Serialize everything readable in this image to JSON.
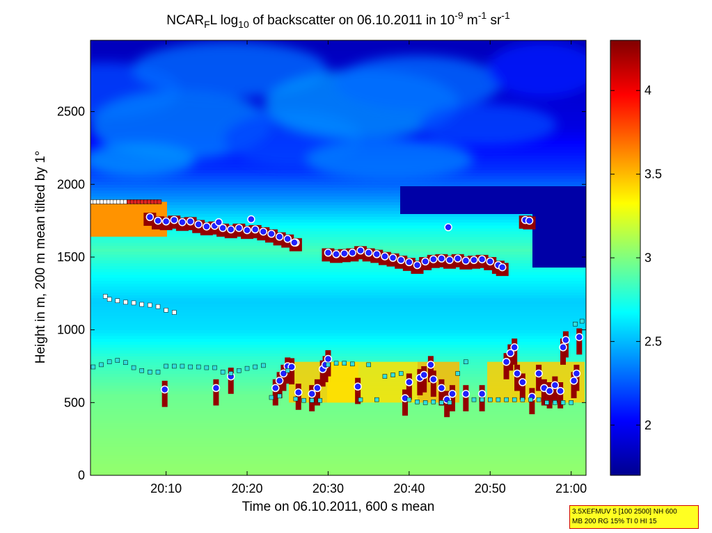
{
  "title": {
    "prefix": "NCAR",
    "sub1": "F",
    "mid1": "L log",
    "sub2": "10",
    "mid2": " of backscatter on 06.10.2011 in 10",
    "sup1": "-9",
    "mid3": " m",
    "sup2": "-1",
    "mid4": " sr",
    "sup3": "-1"
  },
  "info_box": {
    "line1": "3.5XEFMUV 5 [100 2500] NH 600",
    "line2": "MB 200 RG 15% TI 0 HI 15"
  },
  "colors": {
    "colormap": "jet",
    "layer_marker_fill": "#2020ff",
    "layer_marker_edge": "#ff2020",
    "base_square_fill": "#33dddd",
    "top_square_fill": "#ffffff",
    "red_square_fill": "#dd2222"
  },
  "chart_data": {
    "type": "heatmap",
    "title": "NCAR_F L log10 of backscatter on 06.10.2011 in 10^-9 m^-1 sr^-1",
    "xlabel": "Time on 06.10.2011, 600 s mean",
    "ylabel": "Height in m, 200 m mean tilted by 1°",
    "x_range": [
      "20:00:40",
      "21:01:50"
    ],
    "x_ticks": [
      "20:10",
      "20:20",
      "20:30",
      "20:40",
      "20:50",
      "21:00"
    ],
    "y_range": [
      0,
      2990
    ],
    "y_ticks": [
      0,
      500,
      1000,
      1500,
      2000,
      2500
    ],
    "colorbar": {
      "range": [
        1.7,
        4.3
      ],
      "ticks": [
        "2",
        "2.5",
        "3",
        "3.5",
        "4"
      ]
    },
    "layers": [
      {
        "name": "main layer (blue dots)",
        "points": [
          [
            "20:08:00",
            1775
          ],
          [
            "20:09:00",
            1750
          ],
          [
            "20:10:00",
            1745
          ],
          [
            "20:11:00",
            1755
          ],
          [
            "20:12:00",
            1740
          ],
          [
            "20:13:00",
            1745
          ],
          [
            "20:14:00",
            1725
          ],
          [
            "20:15:00",
            1710
          ],
          [
            "20:16:00",
            1715
          ],
          [
            "20:17:00",
            1700
          ],
          [
            "20:18:00",
            1690
          ],
          [
            "20:19:00",
            1700
          ],
          [
            "20:20:00",
            1685
          ],
          [
            "20:21:00",
            1690
          ],
          [
            "20:22:00",
            1675
          ],
          [
            "20:23:00",
            1660
          ],
          [
            "20:24:00",
            1640
          ],
          [
            "20:25:00",
            1625
          ],
          [
            "20:26:00",
            1600
          ],
          [
            "20:30:00",
            1530
          ],
          [
            "20:31:00",
            1520
          ],
          [
            "20:32:00",
            1525
          ],
          [
            "20:33:00",
            1530
          ],
          [
            "20:34:00",
            1545
          ],
          [
            "20:35:00",
            1530
          ],
          [
            "20:36:00",
            1520
          ],
          [
            "20:37:00",
            1505
          ],
          [
            "20:38:00",
            1495
          ],
          [
            "20:39:00",
            1480
          ],
          [
            "20:40:00",
            1465
          ],
          [
            "20:41:00",
            1445
          ],
          [
            "20:42:00",
            1470
          ],
          [
            "20:43:00",
            1485
          ],
          [
            "20:44:00",
            1490
          ],
          [
            "20:45:00",
            1480
          ],
          [
            "20:46:00",
            1490
          ],
          [
            "20:47:00",
            1475
          ],
          [
            "20:48:00",
            1480
          ],
          [
            "20:49:00",
            1485
          ],
          [
            "20:50:00",
            1470
          ],
          [
            "20:51:00",
            1445
          ],
          [
            "20:51:30",
            1430
          ],
          [
            "20:54:20",
            1755
          ],
          [
            "20:54:50",
            1750
          ]
        ],
        "outliers": [
          [
            "20:16:30",
            1740
          ],
          [
            "20:20:30",
            1760
          ],
          [
            "20:25:50",
            1600
          ],
          [
            "20:44:50",
            1705
          ]
        ]
      },
      {
        "name": "lower layer (blue dots)",
        "points": [
          [
            "20:09:50",
            590
          ],
          [
            "20:16:10",
            600
          ],
          [
            "20:18:00",
            680
          ],
          [
            "20:23:30",
            600
          ],
          [
            "20:24:00",
            650
          ],
          [
            "20:24:30",
            700
          ],
          [
            "20:25:00",
            750
          ],
          [
            "20:25:30",
            745
          ],
          [
            "20:26:20",
            570
          ],
          [
            "20:28:00",
            560
          ],
          [
            "20:28:40",
            600
          ],
          [
            "20:29:20",
            730
          ],
          [
            "20:29:40",
            760
          ],
          [
            "20:30:00",
            800
          ],
          [
            "20:33:40",
            610
          ],
          [
            "20:39:30",
            530
          ],
          [
            "20:40:00",
            640
          ],
          [
            "20:41:20",
            670
          ],
          [
            "20:41:50",
            690
          ],
          [
            "20:42:40",
            760
          ],
          [
            "20:43:00",
            660
          ],
          [
            "20:44:00",
            600
          ],
          [
            "20:44:40",
            520
          ],
          [
            "20:45:20",
            560
          ],
          [
            "20:47:00",
            560
          ],
          [
            "20:49:00",
            560
          ],
          [
            "20:52:00",
            780
          ],
          [
            "20:52:30",
            840
          ],
          [
            "20:53:00",
            880
          ],
          [
            "20:53:20",
            700
          ],
          [
            "20:54:00",
            640
          ],
          [
            "20:55:10",
            540
          ],
          [
            "20:56:00",
            700
          ],
          [
            "20:56:40",
            600
          ],
          [
            "20:57:20",
            580
          ],
          [
            "20:58:00",
            620
          ],
          [
            "20:58:40",
            580
          ],
          [
            "20:59:00",
            880
          ],
          [
            "20:59:20",
            930
          ],
          [
            "21:00:20",
            650
          ],
          [
            "21:00:40",
            700
          ],
          [
            "21:01:00",
            950
          ]
        ]
      }
    ],
    "squares": {
      "base_cyan": "cloud base / lower boundary markers along ~500-780 m",
      "top_white": "aerosol layer top ~1100-1230 m from 20:02 to 20:11",
      "red_top": "red squares at ~1880 m from 20:00 to 20:09"
    }
  }
}
